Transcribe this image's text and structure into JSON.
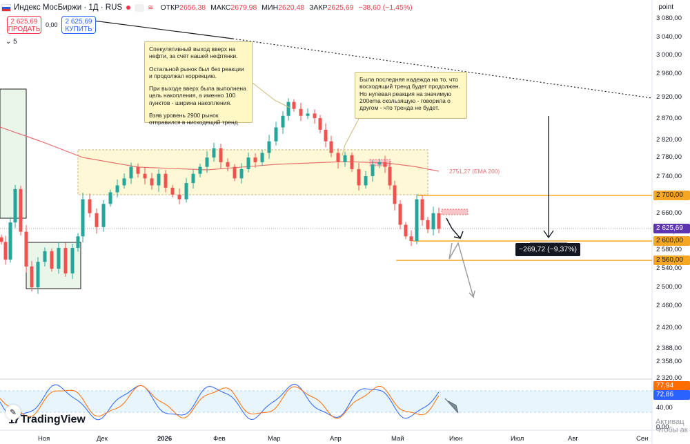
{
  "header": {
    "symbol_title": "Индекс МосБиржи · 1Д · RUS",
    "ohlc": [
      {
        "key": "ОТКР",
        "value": "2656,38"
      },
      {
        "key": "МАКС",
        "value": "2679,98"
      },
      {
        "key": "МИН",
        "value": "2620,48"
      },
      {
        "key": "ЗАКР",
        "value": "2625,69"
      },
      {
        "key": "",
        "value": "−38,60 (−1,45%)"
      }
    ],
    "axis_unit": "point"
  },
  "trade": {
    "sell_price": "2 625,69",
    "sell_label": "ПРОДАТЬ",
    "spread": "0,00",
    "buy_price": "2 625,69",
    "buy_label": "КУПИТЬ",
    "indicators_toggle": "5"
  },
  "price_axis": {
    "ticks": [
      "3 080,00",
      "3 040,00",
      "3 000,00",
      "2 960,00",
      "2 920,00",
      "2 870,00",
      "2 820,00",
      "2 780,00",
      "2 740,00",
      "2 700,00",
      "2 660,00",
      "2 620,00",
      "2 580,00",
      "2 540,00",
      "2 500,00",
      "2 460,00",
      "2 420,00",
      "2 388,00",
      "2 358,00",
      "2 320,00"
    ],
    "current_price": "2 625,69",
    "level_badges": [
      "2 700,00",
      "2 600,00",
      "2 560,00"
    ]
  },
  "stoch_axis": {
    "ticks": [
      "40,00",
      "0,00"
    ],
    "k_value": "77,94",
    "d_value": "72,86"
  },
  "time_axis": {
    "labels": [
      "Ноя",
      "Дек",
      "2026",
      "Фев",
      "Мар",
      "Апр",
      "Май",
      "Июн",
      "Июл",
      "Авг",
      "Сен"
    ]
  },
  "ema_label": "2751,27 (EMA 200)",
  "annotations": {
    "note1": [
      "Спекулятивный выход вверх на нефти, за счёт нашей нефтянки.",
      "Остальной рынок был без реакции и продолжал коррекцию.",
      "При выходе вверх была выполнена цель накопления, а именно 100 пунктов - ширина накопления.",
      "Взяв уровень 2900 рынок отправился в нисходящий тренд"
    ],
    "note2": [
      "Была последняя надежда на то, что восходящий тренд будет продолжен. Но нулевая реакция на значимую 200ema скользящую - говорила о другом - что тренда не будет."
    ]
  },
  "measure_label": "−269,72 (−9,37%)",
  "branding": {
    "logo_text": "TradingView",
    "logo_mark": "17"
  },
  "watermark": {
    "line1": "Активац",
    "line2": "Чтобы ак"
  },
  "colors": {
    "up": "#26a69a",
    "down": "#ef5350",
    "ema": "#e57373",
    "level": "#f5a623",
    "current_price": "#5e35b1",
    "stoch_k": "#2962ff",
    "stoch_d": "#ff6d00",
    "box_fill": "#fff8d6"
  },
  "icons": [
    "pencil-icon",
    "arrow-icon"
  ]
}
